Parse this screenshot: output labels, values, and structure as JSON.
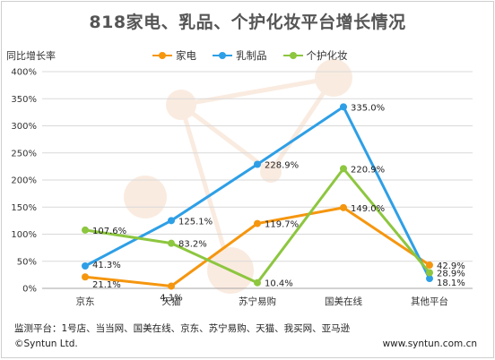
{
  "title": "818家电、乳品、个护化妆平台增长情况",
  "footer": {
    "platforms": "监测平台：1号店、当当网、国美在线、京东、苏宁易购、天猫、我买网、亚马逊",
    "copyright": "©Syntun Ltd.",
    "url": "www.syntun.com.cn"
  },
  "chart_data": {
    "type": "line",
    "title": "818家电、乳品、个护化妆平台增长情况",
    "ylabel": "同比增长率",
    "xlabel": "",
    "categories": [
      "京东",
      "天猫",
      "苏宁易购",
      "国美在线",
      "其他平台"
    ],
    "ylim": [
      0,
      400
    ],
    "yticks": [
      0,
      50,
      100,
      150,
      200,
      250,
      300,
      350,
      400
    ],
    "ytick_labels": [
      "0%",
      "50%",
      "100%",
      "150%",
      "200%",
      "250%",
      "300%",
      "350%",
      "400%"
    ],
    "grid": true,
    "legend_position": "top",
    "series": [
      {
        "name": "家电",
        "color": "#f5960f",
        "values": [
          21.1,
          4.1,
          119.7,
          149.0,
          42.9
        ],
        "labels": [
          "21.1%",
          "4.1%",
          "119.7%",
          "149.0%",
          "42.9%"
        ]
      },
      {
        "name": "乳制品",
        "color": "#2e9fe6",
        "values": [
          41.3,
          125.1,
          228.9,
          335.0,
          18.1
        ],
        "labels": [
          "41.3%",
          "125.1%",
          "228.9%",
          "335.0%",
          "18.1%"
        ]
      },
      {
        "name": "个护化妆",
        "color": "#8dc63f",
        "values": [
          107.6,
          83.2,
          10.4,
          220.9,
          28.9
        ],
        "labels": [
          "107.6%",
          "83.2%",
          "10.4%",
          "220.9%",
          "28.9%"
        ]
      }
    ]
  }
}
